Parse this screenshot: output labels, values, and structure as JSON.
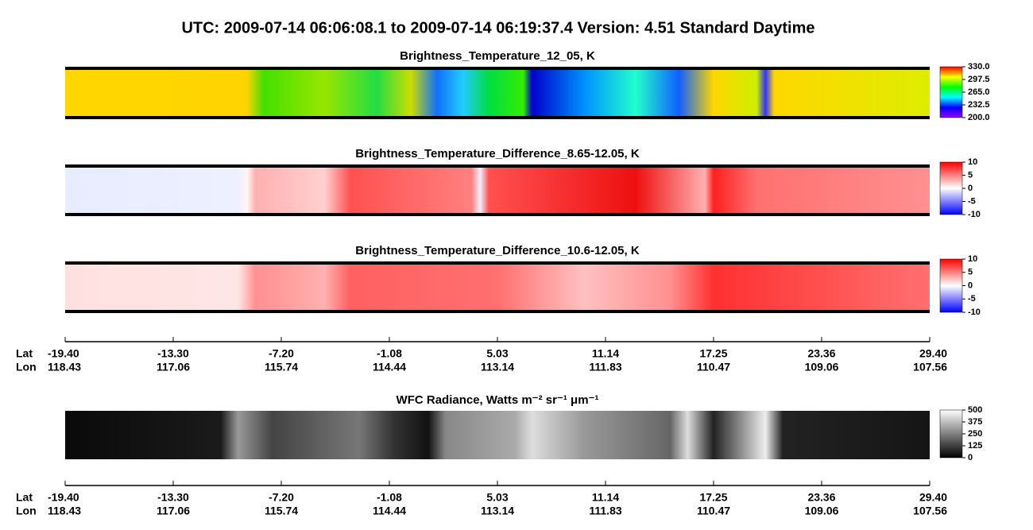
{
  "header": {
    "title": "UTC:  2009-07-14   06:06:08.1  to  2009-07-14   06:19:37.4    Version: 4.51  Standard Daytime"
  },
  "panels": [
    {
      "title": "Brightness_Temperature_12_05, K",
      "colorbar": {
        "lim": [
          200,
          330
        ],
        "colors": [
          "#9900ff",
          "#0000ff",
          "#00ffff",
          "#00ff00",
          "#ffff00",
          "#ff0000"
        ],
        "ticks": [
          {
            "value": 330,
            "label": "330.0"
          },
          {
            "value": 297.5,
            "label": "297.5"
          },
          {
            "value": 265,
            "label": "265.0"
          },
          {
            "value": 232.5,
            "label": "232.5"
          },
          {
            "value": 200,
            "label": "200.0"
          }
        ]
      }
    },
    {
      "title": "Brightness_Temperature_Difference_8.65-12.05, K",
      "colorbar": {
        "lim": [
          -10,
          10
        ],
        "colors": [
          "#0000ff",
          "#ffffff",
          "#ff0000"
        ],
        "ticks": [
          10,
          5,
          0,
          -5,
          -10
        ]
      }
    },
    {
      "title": "Brightness_Temperature_Difference_10.6-12.05, K",
      "colorbar": {
        "lim": [
          -10,
          10
        ],
        "colors": [
          "#0000ff",
          "#ffffff",
          "#ff0000"
        ],
        "ticks": [
          10,
          5,
          0,
          -5,
          -10
        ]
      }
    },
    {
      "title": "WFC Radiance, Watts m⁻² sr⁻¹ μm⁻¹",
      "colorbar": {
        "lim": [
          0,
          500
        ],
        "colors": [
          "#000000",
          "#ffffff"
        ],
        "ticks": [
          500,
          375,
          250,
          125,
          0
        ]
      }
    }
  ],
  "axes": [
    {
      "lat_label": "Lat",
      "lon_label": "Lon",
      "lat": [
        "-19.40",
        "-13.30",
        "-7.20",
        "-1.08",
        "5.03",
        "11.14",
        "17.25",
        "23.36",
        "29.40"
      ],
      "lon": [
        "118.43",
        "117.06",
        "115.74",
        "114.44",
        "113.14",
        "111.83",
        "110.47",
        "109.06",
        "107.56"
      ]
    },
    {
      "lat_label": "Lat",
      "lon_label": "Lon",
      "lat": [
        "-19.40",
        "-13.30",
        "-7.20",
        "-1.08",
        "5.03",
        "11.14",
        "17.25",
        "23.36",
        "29.40"
      ],
      "lon": [
        "118.43",
        "117.06",
        "115.74",
        "114.44",
        "113.14",
        "111.83",
        "110.47",
        "109.06",
        "107.56"
      ]
    }
  ]
}
